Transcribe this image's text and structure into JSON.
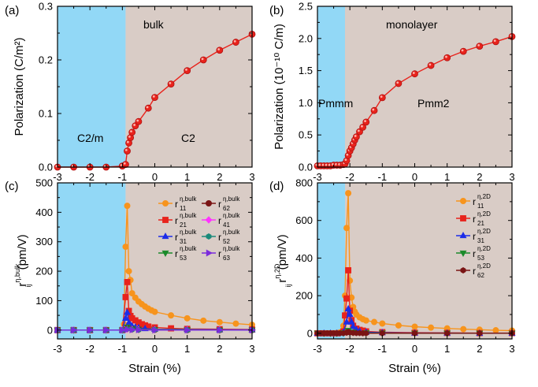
{
  "chart_data": [
    {
      "panel": "(a)",
      "type": "line",
      "title": "bulk",
      "xlim": [
        -3,
        3
      ],
      "ylim": [
        0,
        0.3
      ],
      "xticks": [
        "-3",
        "-2",
        "-1",
        "0",
        "1",
        "2",
        "3"
      ],
      "yticks": [
        "0.0",
        "0.1",
        "0.2",
        "0.3"
      ],
      "ylabel": "Polarization (C/m²)",
      "xlabel": "",
      "shade_until": -0.9,
      "regions": [
        "C2/m",
        "C2"
      ],
      "series": [
        {
          "color": "#e8231c",
          "marker": "circle",
          "x": [
            -3,
            -2.5,
            -2,
            -1.5,
            -1,
            -0.9,
            -0.85,
            -0.8,
            -0.75,
            -0.7,
            -0.6,
            -0.5,
            -0.2,
            0,
            0.5,
            1,
            1.5,
            2,
            2.5,
            3
          ],
          "y": [
            0,
            0,
            0,
            0,
            0.002,
            0.005,
            0.03,
            0.045,
            0.055,
            0.065,
            0.077,
            0.085,
            0.11,
            0.13,
            0.155,
            0.18,
            0.2,
            0.218,
            0.233,
            0.248
          ]
        }
      ]
    },
    {
      "panel": "(b)",
      "type": "line",
      "title": "monolayer",
      "xlim": [
        -3,
        3
      ],
      "ylim": [
        0,
        2.5
      ],
      "xticks": [
        "-3",
        "-2",
        "-1",
        "0",
        "1",
        "2",
        "3"
      ],
      "yticks": [
        "0.0",
        "0.5",
        "1.0",
        "1.5",
        "2.0",
        "2.5"
      ],
      "ylabel": "Polarization (10⁻¹⁰ C/m)",
      "xlabel": "",
      "shade_until": -2.15,
      "regions": [
        "Pmmm",
        "Pmm2"
      ],
      "series": [
        {
          "color": "#e8231c",
          "marker": "circle",
          "x": [
            -3,
            -2.9,
            -2.8,
            -2.7,
            -2.6,
            -2.5,
            -2.4,
            -2.3,
            -2.2,
            -2.15,
            -2.1,
            -2.05,
            -2,
            -1.95,
            -1.9,
            -1.85,
            -1.8,
            -1.7,
            -1.6,
            -1.5,
            -1.25,
            -1,
            -0.5,
            0,
            0.5,
            1,
            1.5,
            2,
            2.5,
            3
          ],
          "y": [
            0.02,
            0.02,
            0.02,
            0.02,
            0.02,
            0.03,
            0.03,
            0.03,
            0.04,
            0.05,
            0.1,
            0.18,
            0.25,
            0.3,
            0.36,
            0.42,
            0.47,
            0.55,
            0.62,
            0.7,
            0.88,
            1.08,
            1.3,
            1.45,
            1.58,
            1.7,
            1.8,
            1.88,
            1.95,
            2.03
          ]
        }
      ]
    },
    {
      "panel": "(c)",
      "type": "line",
      "xlim": [
        -3,
        3
      ],
      "ylim": [
        -30,
        500
      ],
      "xticks": [
        "-3",
        "-2",
        "-1",
        "0",
        "1",
        "2",
        "3"
      ],
      "yticks": [
        "0",
        "100",
        "200",
        "300",
        "400",
        "500"
      ],
      "ylabel_main": "r",
      "ylabel_sub": "ij",
      "ylabel_sup": "η,bulk",
      "ylabel_unit": " (pm/V)",
      "xlabel": "Strain (%)",
      "shade_until": -0.9,
      "legend_sup": "η,bulk",
      "series": [
        {
          "sub": "11",
          "color": "#f7941d",
          "marker": "circle",
          "x": [
            -3,
            -2.5,
            -2,
            -1.5,
            -1,
            -0.95,
            -0.9,
            -0.85,
            -0.8,
            -0.75,
            -0.7,
            -0.6,
            -0.5,
            -0.4,
            -0.3,
            -0.2,
            -0.1,
            0,
            0.5,
            1,
            1.5,
            2,
            2.5,
            3
          ],
          "y": [
            0,
            0,
            0,
            0,
            0,
            20,
            283,
            422,
            200,
            170,
            125,
            110,
            97,
            88,
            80,
            73,
            67,
            62,
            50,
            40,
            32,
            27,
            22,
            18
          ]
        },
        {
          "sub": "21",
          "color": "#e8231c",
          "marker": "square",
          "x": [
            -3,
            -2.5,
            -2,
            -1.5,
            -1,
            -0.9,
            -0.85,
            -0.8,
            -0.75,
            -0.7,
            -0.6,
            -0.5,
            -0.4,
            -0.3,
            -0.2,
            0,
            0.5,
            1,
            2,
            3
          ],
          "y": [
            0,
            0,
            0,
            0,
            0,
            112,
            163,
            65,
            48,
            40,
            33,
            26,
            20,
            16,
            12,
            9,
            6,
            4,
            3,
            2
          ]
        },
        {
          "sub": "31",
          "color": "#1c2ce8",
          "marker": "triangle-up",
          "x": [
            -3,
            -2.5,
            -2,
            -1.5,
            -1,
            -0.9,
            -0.85,
            -0.8,
            -0.75,
            -0.7,
            -0.6,
            -0.5,
            -0.3,
            0,
            1,
            2,
            3
          ],
          "y": [
            0,
            0,
            0,
            0,
            0,
            40,
            60,
            25,
            18,
            14,
            10,
            8,
            5,
            3,
            2,
            1,
            1
          ]
        },
        {
          "sub": "53",
          "color": "#1a8a2a",
          "marker": "triangle-down",
          "x": [
            -3,
            -2.5,
            -2,
            -1.5,
            -1,
            -0.85,
            -0.7,
            -0.5,
            0,
            1,
            2,
            3
          ],
          "y": [
            0,
            0,
            0,
            0,
            0,
            10,
            5,
            3,
            2,
            1,
            0,
            0
          ]
        },
        {
          "sub": "62",
          "color": "#7a1414",
          "marker": "circle",
          "x": [
            -3,
            -2.5,
            -2,
            -1.5,
            -1,
            -0.85,
            -0.7,
            -0.5,
            0,
            1,
            2,
            3
          ],
          "y": [
            0,
            0,
            0,
            0,
            0,
            5,
            3,
            2,
            1,
            0,
            0,
            0
          ]
        },
        {
          "sub": "41",
          "color": "#ff33ff",
          "marker": "diamond",
          "x": [
            -3,
            -2.5,
            -2,
            -1.5,
            -1,
            -0.85,
            -0.7,
            -0.5,
            0,
            1,
            2,
            3
          ],
          "y": [
            0,
            0,
            0,
            0,
            0,
            3,
            2,
            1,
            1,
            0,
            0,
            0
          ]
        },
        {
          "sub": "52",
          "color": "#1a8a7a",
          "marker": "hexagon",
          "x": [
            -3,
            -2.5,
            -2,
            -1.5,
            -1,
            -0.85,
            -0.7,
            -0.5,
            0,
            1,
            2,
            3
          ],
          "y": [
            0,
            0,
            0,
            0,
            0,
            4,
            2,
            1,
            1,
            0,
            0,
            0
          ]
        },
        {
          "sub": "63",
          "color": "#7b2bdc",
          "marker": "triangle-right",
          "x": [
            -3,
            -2.5,
            -2,
            -1.5,
            -1,
            -0.85,
            -0.7,
            -0.5,
            0,
            1,
            2,
            3
          ],
          "y": [
            0,
            0,
            0,
            0,
            0,
            2,
            1,
            1,
            0,
            0,
            0,
            0
          ]
        }
      ]
    },
    {
      "panel": "(d)",
      "type": "line",
      "xlim": [
        -3,
        3
      ],
      "ylim": [
        -30,
        800
      ],
      "xticks": [
        "-3",
        "-2",
        "-1",
        "0",
        "1",
        "2",
        "3"
      ],
      "yticks": [
        "0",
        "200",
        "400",
        "600",
        "800"
      ],
      "ylabel_main": "r",
      "ylabel_sub": "ij",
      "ylabel_sup": "η,2D",
      "ylabel_unit": " (pm/V)",
      "xlabel": "Strain (%)",
      "shade_until": -2.15,
      "legend_sup": "η,2D",
      "series": [
        {
          "sub": "11",
          "color": "#f7941d",
          "marker": "circle",
          "x": [
            -3,
            -2.8,
            -2.6,
            -2.4,
            -2.3,
            -2.2,
            -2.15,
            -2.1,
            -2.05,
            -2,
            -1.95,
            -1.9,
            -1.85,
            -1.8,
            -1.7,
            -1.6,
            -1.5,
            -1.25,
            -1,
            -0.5,
            0,
            0.5,
            1,
            1.5,
            2,
            2.5,
            3
          ],
          "y": [
            0,
            0,
            0,
            2,
            5,
            40,
            200,
            560,
            745,
            280,
            190,
            140,
            115,
            100,
            85,
            75,
            68,
            60,
            52,
            42,
            35,
            30,
            26,
            22,
            19,
            16,
            14
          ]
        },
        {
          "sub": "21",
          "color": "#e8231c",
          "marker": "square",
          "x": [
            -3,
            -2.8,
            -2.6,
            -2.4,
            -2.2,
            -2.15,
            -2.1,
            -2.05,
            -2,
            -1.95,
            -1.9,
            -1.8,
            -1.7,
            -1.6,
            -1.5,
            -1,
            0,
            1,
            2,
            3
          ],
          "y": [
            0,
            0,
            0,
            0,
            10,
            95,
            185,
            335,
            120,
            70,
            40,
            25,
            18,
            14,
            10,
            6,
            3,
            2,
            1,
            1
          ]
        },
        {
          "sub": "31",
          "color": "#1c2ce8",
          "marker": "triangle-up",
          "x": [
            -3,
            -2.8,
            -2.6,
            -2.4,
            -2.2,
            -2.1,
            -2.05,
            -2,
            -1.95,
            -1.9,
            -1.8,
            -1.7,
            -1.5,
            -1,
            0,
            1,
            2,
            3
          ],
          "y": [
            0,
            0,
            0,
            0,
            5,
            60,
            130,
            100,
            60,
            35,
            20,
            12,
            6,
            3,
            1,
            1,
            0,
            0
          ]
        },
        {
          "sub": "53",
          "color": "#1a8a2a",
          "marker": "triangle-down",
          "x": [
            -3,
            -2.8,
            -2.6,
            -2.4,
            -2.2,
            -2.05,
            -1.9,
            -1.5,
            -1,
            0,
            1,
            2,
            3
          ],
          "y": [
            0,
            0,
            0,
            0,
            2,
            15,
            6,
            2,
            1,
            0,
            0,
            0,
            0
          ]
        },
        {
          "sub": "62",
          "color": "#7a1414",
          "marker": "hexagon",
          "x": [
            -3,
            -2.9,
            -2.8,
            -2.7,
            -2.6,
            -2.5,
            -2.4,
            -2.3,
            -2.2,
            -2.1,
            -2.05,
            -2,
            -1.9,
            -1.8,
            -1.7,
            -1.6,
            -1.5,
            -1,
            0,
            1,
            2,
            3
          ],
          "y": [
            0,
            0,
            0,
            0,
            0,
            0,
            0,
            0,
            0,
            3,
            8,
            4,
            2,
            1,
            1,
            0,
            0,
            0,
            0,
            0,
            0,
            0
          ]
        }
      ]
    }
  ]
}
